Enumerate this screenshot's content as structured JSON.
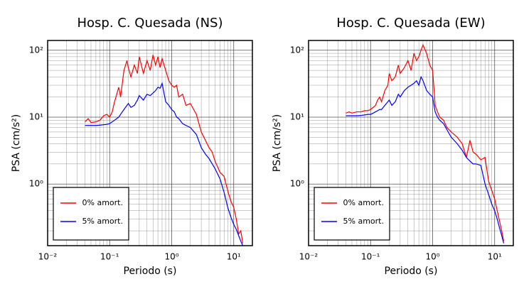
{
  "chart_data": [
    {
      "type": "line",
      "title": "Hosp. C. Quesada (NS)",
      "x_label": "Periodo (s)",
      "y_label": "PSA (cm/s²)",
      "log_x": true,
      "log_y": true,
      "grid": true,
      "legend": "lower left",
      "xlim": [
        0.01,
        20
      ],
      "ylim": [
        0.12,
        140
      ],
      "xticks": [
        {
          "value": 0.01,
          "label": "10⁻²"
        },
        {
          "value": 0.1,
          "label": "10⁻¹"
        },
        {
          "value": 1,
          "label": "10⁰"
        },
        {
          "value": 10,
          "label": "10¹"
        }
      ],
      "yticks": [
        {
          "value": 1,
          "label": "10⁰"
        },
        {
          "value": 10,
          "label": "10¹"
        },
        {
          "value": 100,
          "label": "10²"
        }
      ],
      "x_minor_ticks": [
        0.02,
        0.03,
        0.04,
        0.05,
        0.06,
        0.07,
        0.08,
        0.09,
        0.2,
        0.3,
        0.4,
        0.5,
        0.6,
        0.7,
        0.8,
        0.9,
        2,
        3,
        4,
        5,
        6,
        7,
        8,
        9
      ],
      "y_minor_ticks": [
        0.2,
        0.3,
        0.4,
        0.5,
        0.6,
        0.7,
        0.8,
        0.9,
        2,
        3,
        4,
        5,
        6,
        7,
        8,
        9,
        20,
        30,
        40,
        50,
        60,
        70,
        80,
        90
      ],
      "x": [
        0.04,
        0.045,
        0.05,
        0.06,
        0.07,
        0.08,
        0.09,
        0.1,
        0.11,
        0.12,
        0.13,
        0.14,
        0.15,
        0.17,
        0.19,
        0.2,
        0.22,
        0.25,
        0.28,
        0.3,
        0.35,
        0.4,
        0.45,
        0.5,
        0.55,
        0.6,
        0.65,
        0.7,
        0.8,
        0.9,
        1,
        1.1,
        1.2,
        1.3,
        1.5,
        1.7,
        2,
        2.5,
        3,
        3.5,
        4,
        4.5,
        5,
        6,
        7,
        8,
        9,
        10,
        11,
        12,
        13,
        14
      ],
      "series": [
        {
          "name": "0% amort.",
          "color": "#ff0000",
          "values": [
            8.5,
            9.5,
            8.3,
            8.5,
            9,
            10.5,
            11,
            10,
            12,
            17,
            22,
            28,
            20,
            50,
            70,
            55,
            40,
            60,
            45,
            80,
            45,
            70,
            50,
            85,
            60,
            80,
            55,
            75,
            50,
            35,
            30,
            28,
            30,
            20,
            22,
            15,
            16,
            11,
            6,
            4.5,
            3.5,
            3.0,
            2.2,
            1.5,
            1.3,
            0.8,
            0.55,
            0.45,
            0.3,
            0.18,
            0.2,
            0.13
          ]
        },
        {
          "name": "5% amort.",
          "color": "#0000ff",
          "values": [
            7.5,
            7.5,
            7.5,
            7.5,
            7.6,
            7.7,
            7.8,
            8,
            8.5,
            9,
            9.5,
            10,
            11,
            13,
            15,
            16,
            14,
            15,
            18,
            21,
            18,
            22,
            21,
            23,
            25,
            28,
            27,
            32,
            17,
            15,
            13,
            12,
            10,
            9.5,
            8,
            7.5,
            7,
            5.5,
            3.5,
            2.8,
            2.4,
            2.0,
            1.7,
            1.2,
            0.75,
            0.45,
            0.32,
            0.25,
            0.21,
            0.17,
            0.14,
            0.12
          ]
        }
      ]
    },
    {
      "type": "line",
      "title": "Hosp. C. Quesada (EW)",
      "x_label": "Periodo (s)",
      "y_label": "PSA (cm/s²)",
      "log_x": true,
      "log_y": true,
      "grid": true,
      "legend": "lower left",
      "xlim": [
        0.01,
        20
      ],
      "ylim": [
        0.12,
        140
      ],
      "xticks": [
        {
          "value": 0.01,
          "label": "10⁻²"
        },
        {
          "value": 0.1,
          "label": "10⁻¹"
        },
        {
          "value": 1,
          "label": "10⁰"
        },
        {
          "value": 10,
          "label": "10¹"
        }
      ],
      "yticks": [
        {
          "value": 1,
          "label": "10⁰"
        },
        {
          "value": 10,
          "label": "10¹"
        },
        {
          "value": 100,
          "label": "10²"
        }
      ],
      "x_minor_ticks": [
        0.02,
        0.03,
        0.04,
        0.05,
        0.06,
        0.07,
        0.08,
        0.09,
        0.2,
        0.3,
        0.4,
        0.5,
        0.6,
        0.7,
        0.8,
        0.9,
        2,
        3,
        4,
        5,
        6,
        7,
        8,
        9
      ],
      "y_minor_ticks": [
        0.2,
        0.3,
        0.4,
        0.5,
        0.6,
        0.7,
        0.8,
        0.9,
        2,
        3,
        4,
        5,
        6,
        7,
        8,
        9,
        20,
        30,
        40,
        50,
        60,
        70,
        80,
        90
      ],
      "x": [
        0.04,
        0.045,
        0.05,
        0.06,
        0.07,
        0.08,
        0.09,
        0.1,
        0.11,
        0.12,
        0.13,
        0.14,
        0.15,
        0.17,
        0.19,
        0.2,
        0.22,
        0.25,
        0.28,
        0.3,
        0.35,
        0.4,
        0.45,
        0.5,
        0.55,
        0.6,
        0.65,
        0.7,
        0.8,
        0.9,
        1,
        1.1,
        1.2,
        1.3,
        1.5,
        1.7,
        2,
        2.5,
        3,
        3.5,
        4,
        4.5,
        5,
        6,
        7,
        8,
        9,
        10,
        11,
        12,
        13,
        14
      ],
      "series": [
        {
          "name": "0% amort.",
          "color": "#ff0000",
          "values": [
            11.5,
            12,
            11.5,
            12,
            12,
            12.5,
            12.5,
            13,
            14,
            15,
            18,
            20,
            17,
            25,
            30,
            45,
            35,
            40,
            60,
            45,
            55,
            70,
            50,
            90,
            70,
            80,
            100,
            120,
            90,
            60,
            50,
            15,
            12,
            10,
            9,
            7,
            6,
            5,
            4,
            2.5,
            4.5,
            3,
            2.8,
            2.3,
            2.5,
            1.1,
            0.8,
            0.6,
            0.4,
            0.28,
            0.2,
            0.14
          ]
        },
        {
          "name": "5% amort.",
          "color": "#0000ff",
          "values": [
            10.5,
            10.5,
            10.5,
            10.5,
            10.6,
            10.8,
            11,
            11,
            11.5,
            12,
            12.5,
            13,
            13,
            15,
            17,
            18,
            15,
            17,
            22,
            20,
            25,
            28,
            30,
            32,
            35,
            30,
            40,
            35,
            25,
            22,
            20,
            12,
            10,
            9,
            8,
            6.5,
            5,
            4,
            3.2,
            2.5,
            2.2,
            2.0,
            2.0,
            1.9,
            1.0,
            0.7,
            0.5,
            0.4,
            0.3,
            0.22,
            0.17,
            0.13
          ]
        }
      ]
    }
  ]
}
